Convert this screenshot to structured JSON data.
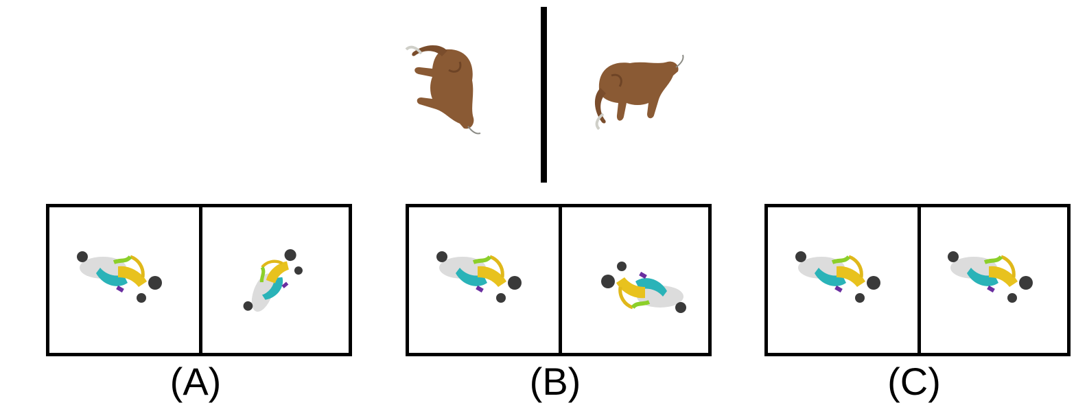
{
  "options": [
    {
      "label": "(A)"
    },
    {
      "label": "(B)"
    },
    {
      "label": "(C)"
    }
  ],
  "icons": {
    "reference": [
      "elephant-icon",
      "elephant-icon"
    ],
    "figure": "rider-figure-icon"
  },
  "colors": {
    "elephant": "#8a5a34",
    "frame": "#000000",
    "figure_white": "#dcdcdc",
    "figure_teal": "#2ab3b8",
    "figure_yellow": "#e8c21e",
    "figure_green": "#8ccf2a",
    "figure_dark": "#3a3a3a"
  }
}
